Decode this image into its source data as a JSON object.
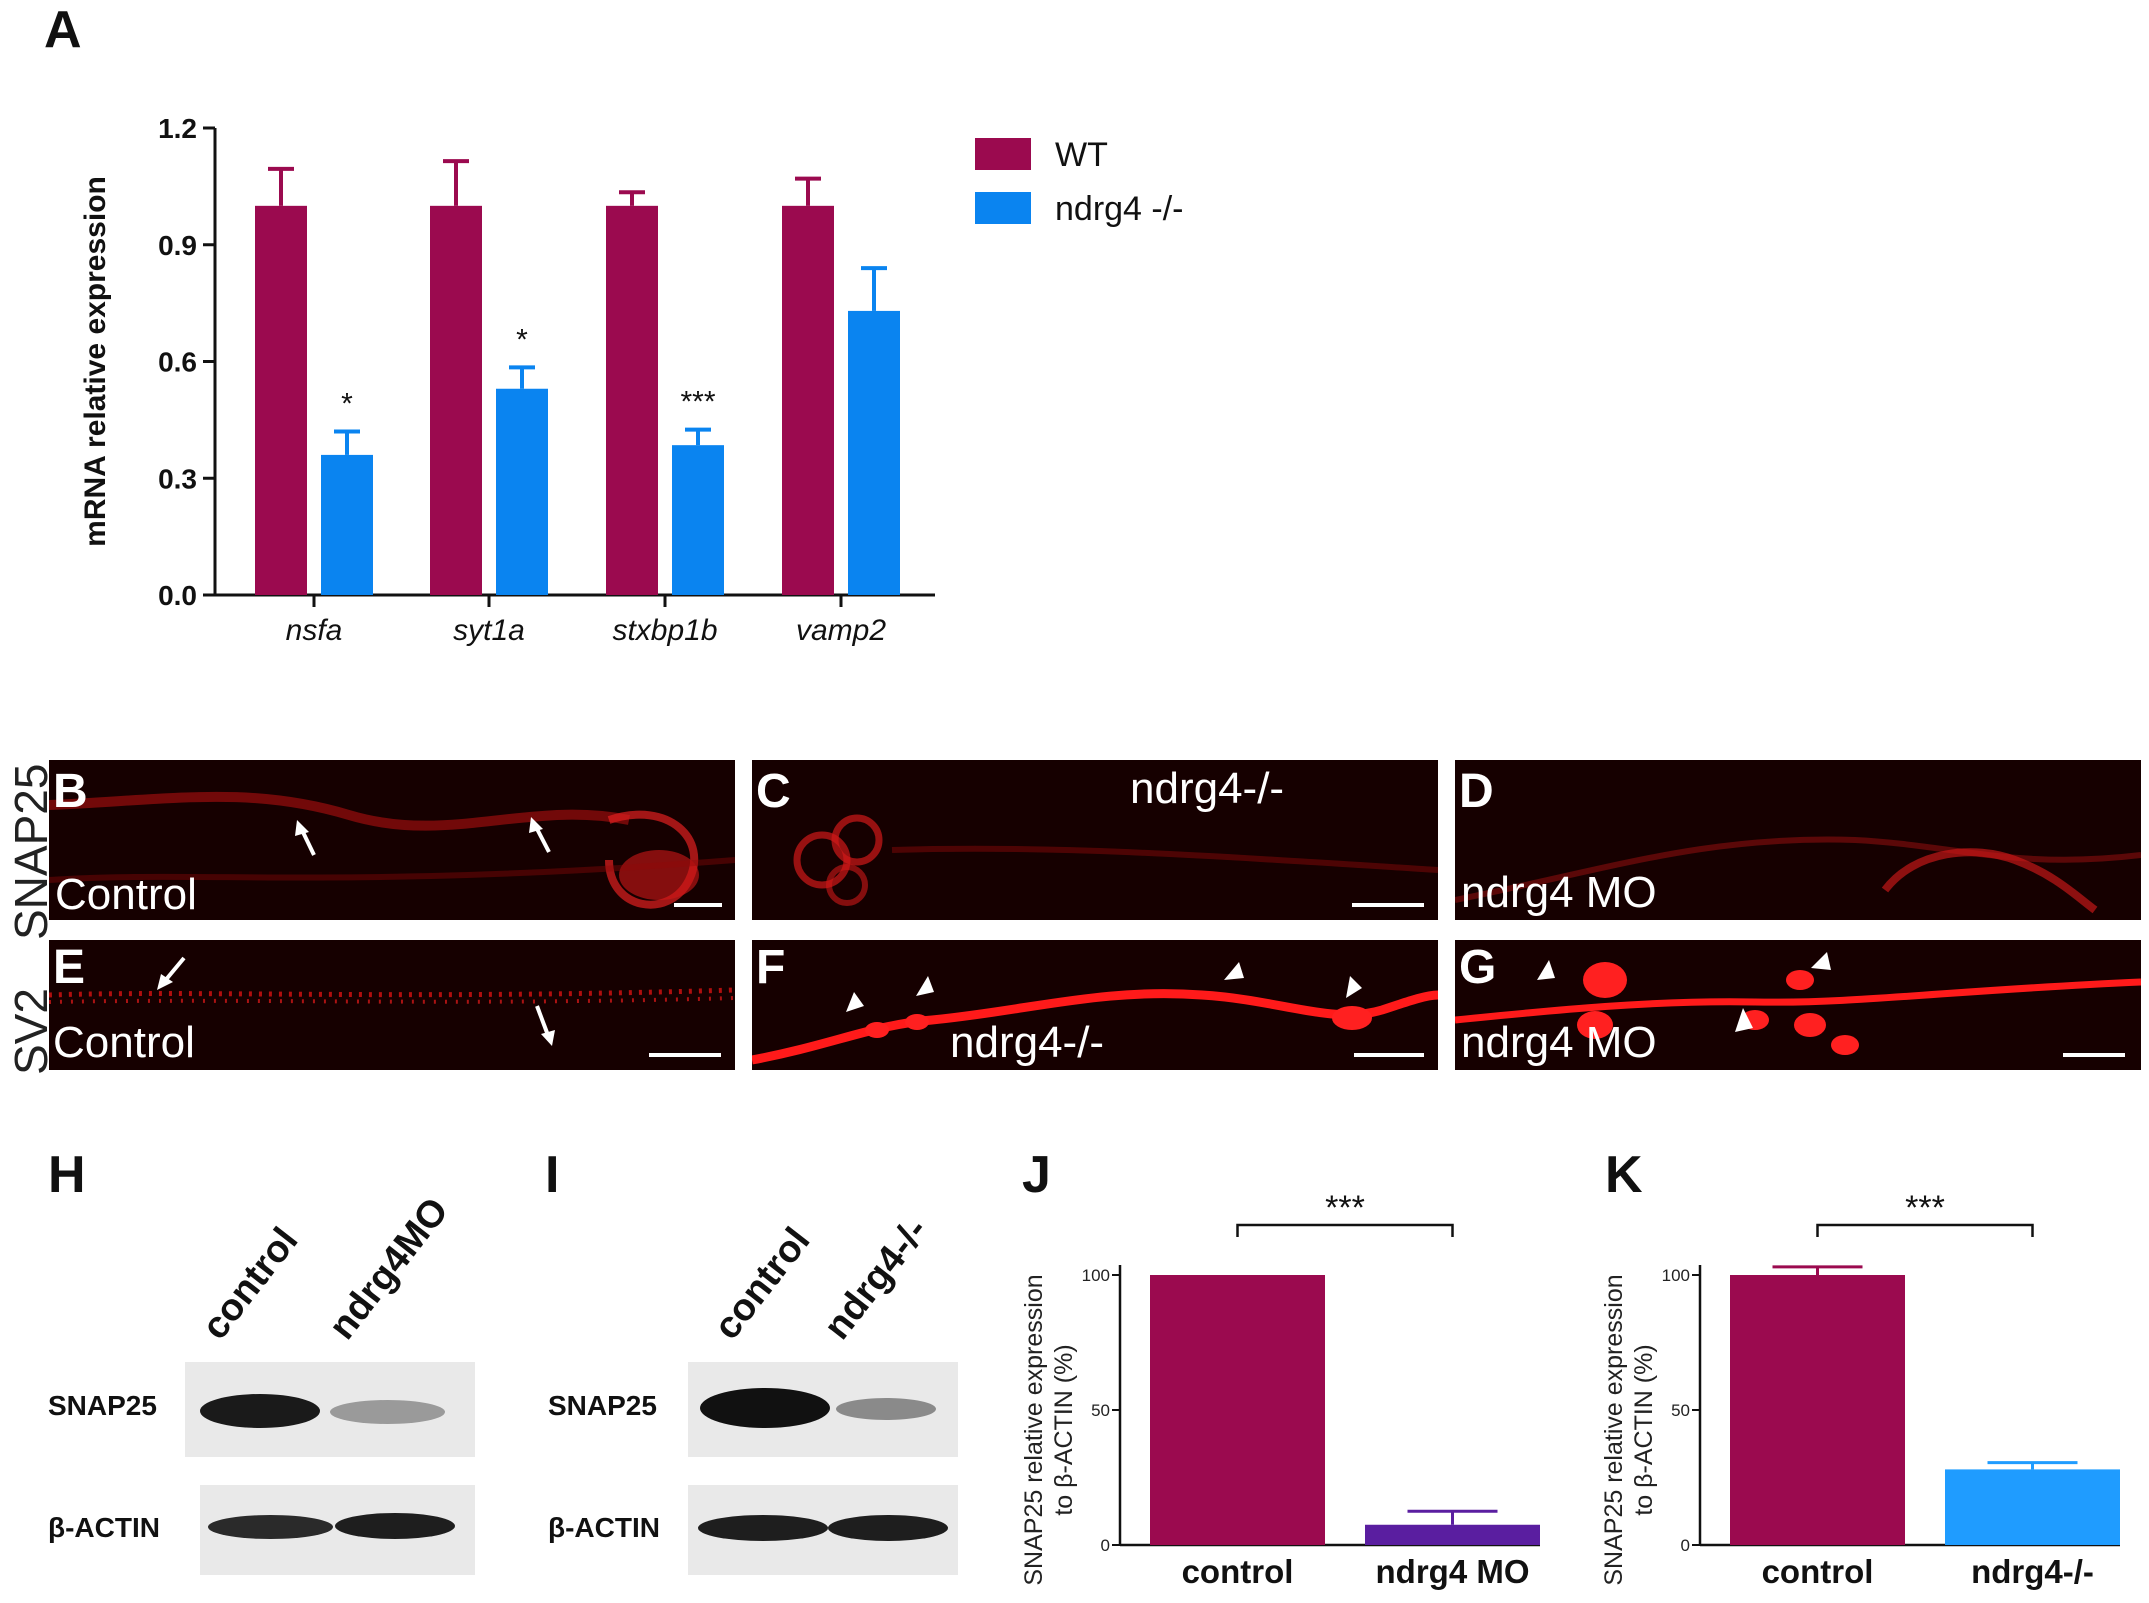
{
  "panels": {
    "A": "A",
    "B": "B",
    "C": "C",
    "D": "D",
    "E": "E",
    "F": "F",
    "G": "G",
    "H": "H",
    "I": "I",
    "J": "J",
    "K": "K"
  },
  "colors": {
    "wt": "#9b0a4f",
    "mutant": "#0a84f0",
    "mo": "#5a1ea0",
    "k_mutant": "#1f9cff",
    "stain": "#ff1a1a"
  },
  "row_labels": {
    "snap25": "SNAP25",
    "sv2": "SV2"
  },
  "microscopy": {
    "B": {
      "label": "Control",
      "icon": "arrow-icon"
    },
    "C": {
      "label": "ndrg4-/-"
    },
    "D": {
      "label": "ndrg4 MO"
    },
    "E": {
      "label": "Control",
      "icon": "arrow-icon"
    },
    "F": {
      "label": "ndrg4-/-",
      "icon": "arrowhead-icon"
    },
    "G": {
      "label": "ndrg4 MO",
      "icon": "arrowhead-icon"
    }
  },
  "blots": {
    "H": {
      "lanes": [
        "control",
        "ndrg4MO"
      ],
      "rows": [
        "SNAP25",
        "β-ACTIN"
      ]
    },
    "I": {
      "lanes": [
        "control",
        "ndrg4-/-"
      ],
      "rows": [
        "SNAP25",
        "β-ACTIN"
      ]
    }
  },
  "chart_data": [
    {
      "type": "bar",
      "panel": "A",
      "categories": [
        "nsfa",
        "syt1a",
        "stxbp1b",
        "vamp2"
      ],
      "series": [
        {
          "name": "WT",
          "values": [
            1.0,
            1.0,
            1.0,
            1.0
          ],
          "errors": [
            0.095,
            0.115,
            0.035,
            0.07
          ]
        },
        {
          "name": "ndrg4 -/-",
          "values": [
            0.36,
            0.53,
            0.385,
            0.73
          ],
          "errors": [
            0.06,
            0.055,
            0.04,
            0.11
          ]
        }
      ],
      "significance": [
        "*",
        "*",
        "***",
        ""
      ],
      "ylabel": "mRNA relative expression",
      "ylim": [
        0,
        1.2
      ],
      "yticks": [
        "0.0",
        "0.3",
        "0.6",
        "0.9",
        "1.2"
      ],
      "legend": "top-right"
    },
    {
      "type": "bar",
      "panel": "J",
      "categories": [
        "control",
        "ndrg4 MO"
      ],
      "values": [
        100,
        7.5
      ],
      "errors": [
        0,
        5
      ],
      "significance": "***",
      "ylabel": "SNAP25 relative expression to β-ACTIN (%)",
      "ylim": [
        0,
        100
      ],
      "yticks": [
        "0",
        "50",
        "100"
      ]
    },
    {
      "type": "bar",
      "panel": "K",
      "categories": [
        "control",
        "ndrg4-/-"
      ],
      "values": [
        100,
        28
      ],
      "errors": [
        3,
        2.5
      ],
      "significance": "***",
      "ylabel": "SNAP25 relative expression to β-ACTIN (%)",
      "ylim": [
        0,
        100
      ],
      "yticks": [
        "0",
        "50",
        "100"
      ]
    }
  ]
}
